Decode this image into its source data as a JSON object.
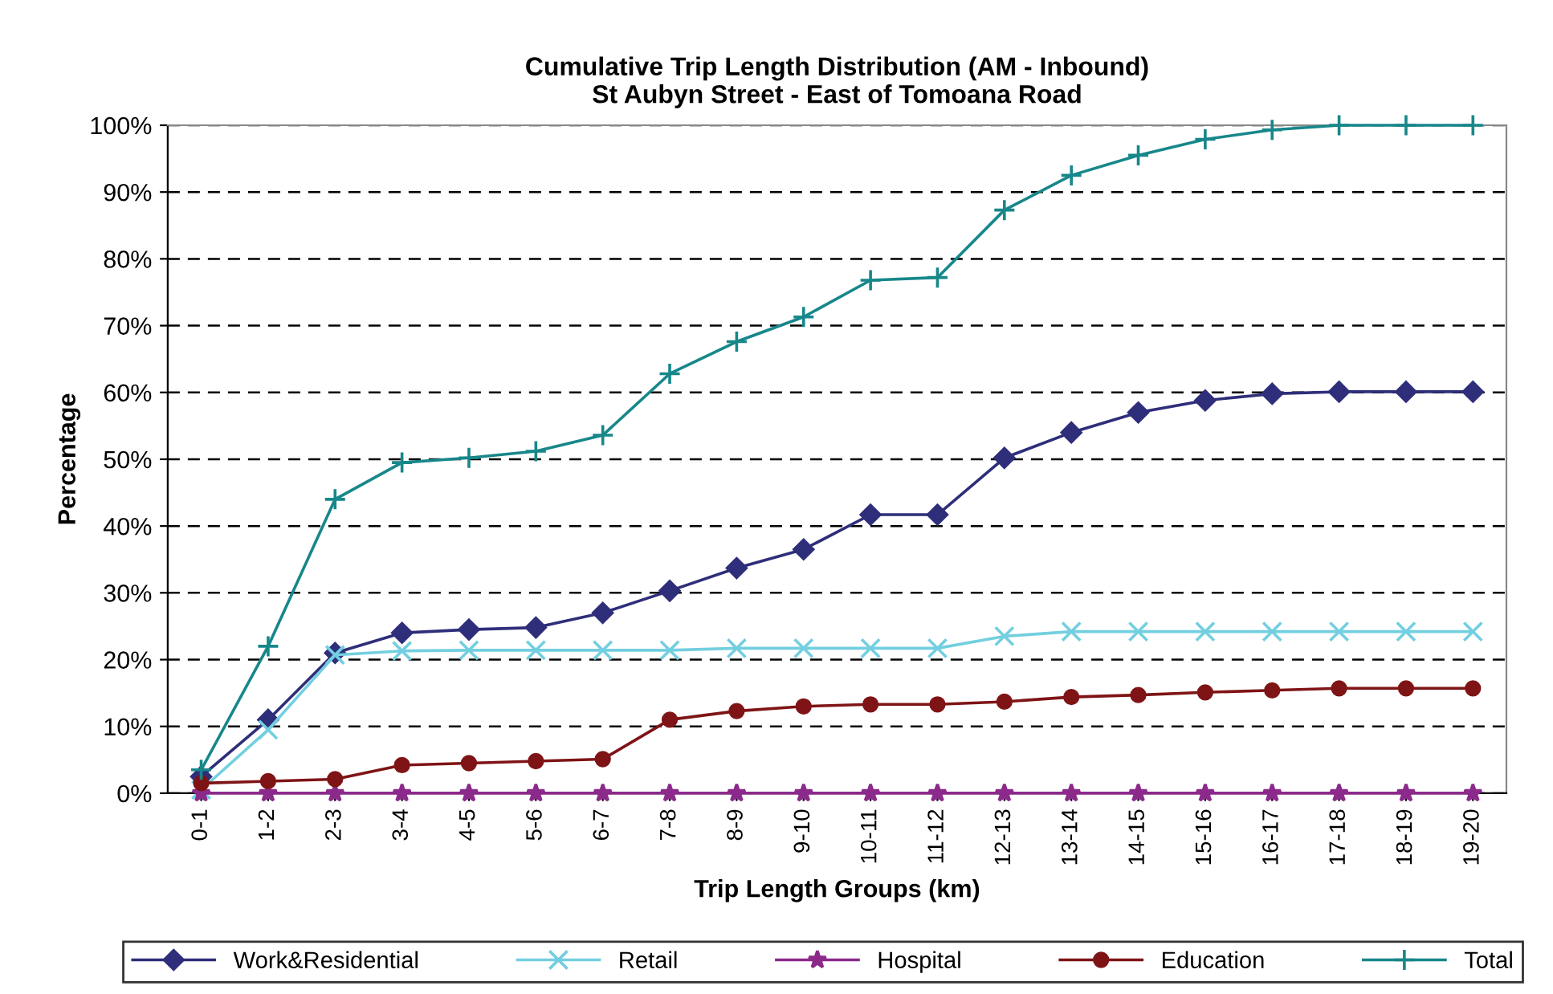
{
  "chart_data": {
    "type": "line",
    "title": "Cumulative Trip Length Distribution (AM - Inbound)\nSt Aubyn Street - East of Tomoana Road",
    "xlabel": "Trip Length Groups (km)",
    "ylabel": "Percentage",
    "categories": [
      "0-1",
      "1-2",
      "2-3",
      "3-4",
      "4-5",
      "5-6",
      "6-7",
      "7-8",
      "8-9",
      "9-10",
      "10-11",
      "11-12",
      "12-13",
      "13-14",
      "14-15",
      "15-16",
      "16-17",
      "17-18",
      "18-19",
      "19-20"
    ],
    "series": [
      {
        "name": "Work&Residential",
        "color": "#2e2e7a",
        "marker": "diamond",
        "values": [
          2.5,
          11,
          21,
          24,
          24.5,
          24.8,
          27,
          30.3,
          33.7,
          36.5,
          41.7,
          41.7,
          50.2,
          54,
          57,
          58.8,
          59.8,
          60.1,
          60.1,
          60.1
        ]
      },
      {
        "name": "Retail",
        "color": "#73cfe0",
        "marker": "cross",
        "values": [
          0.5,
          9.5,
          20.7,
          21.3,
          21.4,
          21.4,
          21.4,
          21.4,
          21.7,
          21.7,
          21.7,
          21.7,
          23.5,
          24.2,
          24.2,
          24.2,
          24.2,
          24.2,
          24.2,
          24.2
        ]
      },
      {
        "name": "Hospital",
        "color": "#8b2a8b",
        "marker": "star",
        "values": [
          0,
          0,
          0,
          0,
          0,
          0,
          0,
          0,
          0,
          0,
          0,
          0,
          0,
          0,
          0,
          0,
          0,
          0,
          0,
          0
        ]
      },
      {
        "name": "Education",
        "color": "#7f1416",
        "marker": "circle",
        "values": [
          1.5,
          1.8,
          2.1,
          4.2,
          4.5,
          4.8,
          5.1,
          11,
          12.3,
          13,
          13.3,
          13.3,
          13.7,
          14.4,
          14.7,
          15.1,
          15.4,
          15.7,
          15.7,
          15.7
        ]
      },
      {
        "name": "Total",
        "color": "#17878a",
        "marker": "plus",
        "values": [
          3.5,
          22,
          44,
          49.5,
          50.2,
          51.2,
          53.6,
          62.8,
          67.6,
          71.3,
          76.8,
          77.2,
          87.3,
          92.5,
          95.5,
          97.9,
          99.3,
          100,
          100,
          100
        ]
      }
    ],
    "ylim": [
      0,
      100
    ],
    "yticks": [
      {
        "value": 0,
        "label": "0%"
      },
      {
        "value": 10,
        "label": "10%"
      },
      {
        "value": 20,
        "label": "20%"
      },
      {
        "value": 30,
        "label": "30%"
      },
      {
        "value": 40,
        "label": "40%"
      },
      {
        "value": 50,
        "label": "50%"
      },
      {
        "value": 60,
        "label": "60%"
      },
      {
        "value": 70,
        "label": "70%"
      },
      {
        "value": 80,
        "label": "80%"
      },
      {
        "value": 90,
        "label": "90%"
      },
      {
        "value": 100,
        "label": "100%"
      }
    ],
    "grid": "y",
    "legend": "bottom",
    "line_style": "solid"
  }
}
